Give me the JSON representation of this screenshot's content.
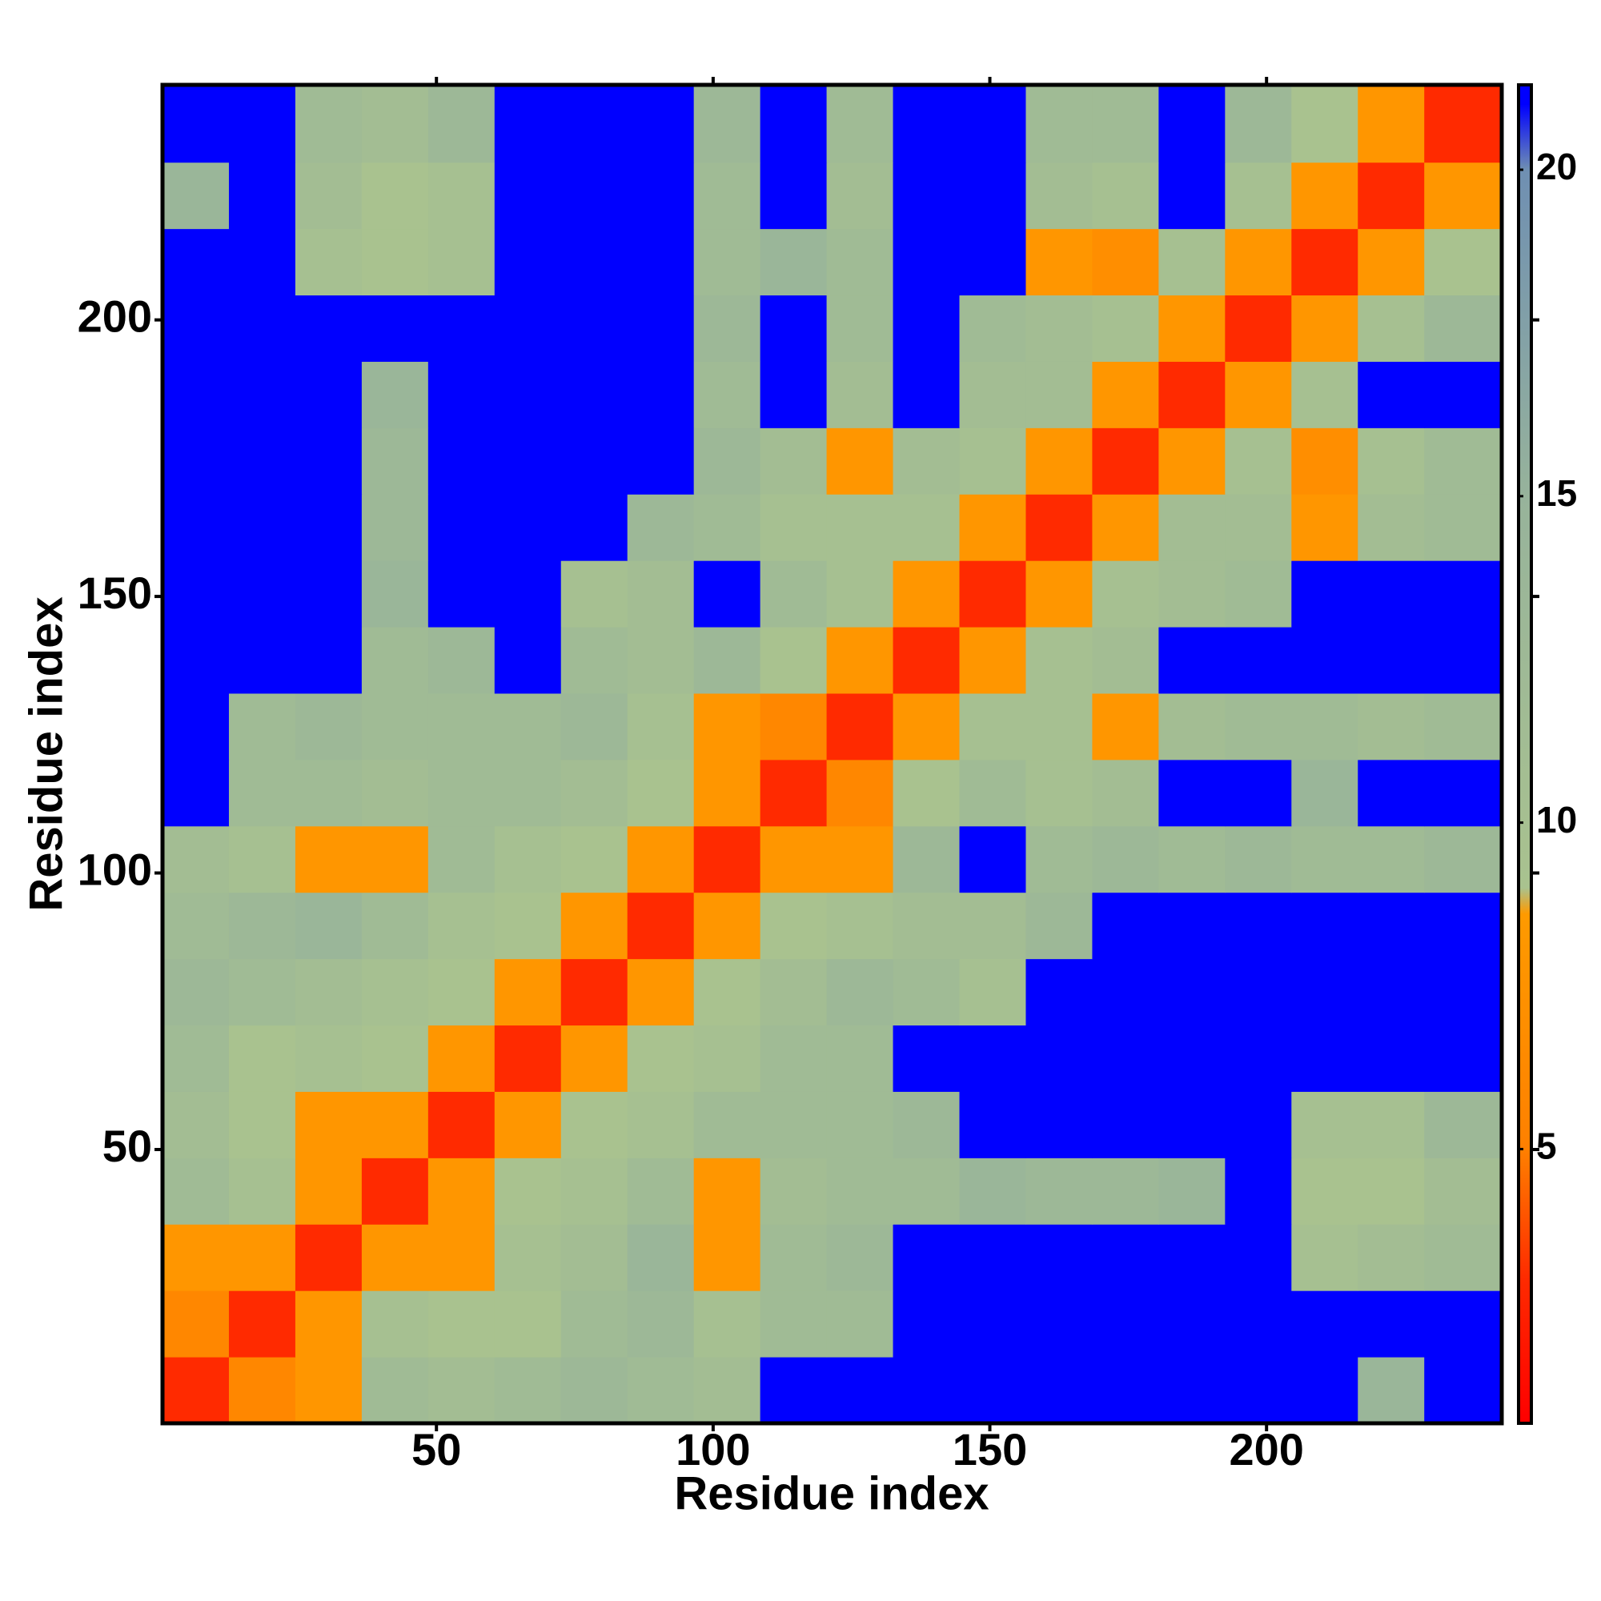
{
  "chart_data": {
    "type": "heatmap",
    "xlabel": "Residue index",
    "ylabel": "Residue index",
    "xlim": [
      0.5,
      242.5
    ],
    "ylim": [
      0.5,
      242.5
    ],
    "xticks": [
      50,
      100,
      150,
      200
    ],
    "yticks": [
      50,
      100,
      150,
      200
    ],
    "bins": [
      0.5,
      12.5,
      24.5,
      36.5,
      48.5,
      60.5,
      72.5,
      84.5,
      96.5,
      108.5,
      120.5,
      132.5,
      144.5,
      156.5,
      168.5,
      180.5,
      192.5,
      204.5,
      216.5,
      228.5,
      242.5
    ],
    "z": [
      [
        3,
        6,
        8,
        12,
        11,
        12,
        13,
        12,
        11,
        21,
        21,
        21,
        21,
        21,
        21,
        21,
        21,
        21,
        14,
        21
      ],
      [
        6,
        3,
        8,
        10,
        9,
        9,
        12,
        13,
        10,
        12,
        12,
        21,
        21,
        21,
        21,
        21,
        21,
        21,
        21,
        21
      ],
      [
        8,
        8,
        3,
        8,
        8,
        10,
        11,
        14,
        8,
        12,
        13,
        21,
        21,
        21,
        21,
        21,
        21,
        10,
        11,
        12
      ],
      [
        12,
        10,
        8,
        3,
        8,
        9,
        10,
        12,
        8,
        11,
        12,
        12,
        14,
        13,
        13,
        14,
        21,
        9,
        9,
        11
      ],
      [
        11,
        9,
        8,
        8,
        3,
        8,
        9,
        10,
        12,
        12,
        12,
        13,
        21,
        21,
        21,
        21,
        21,
        10,
        10,
        13
      ],
      [
        12,
        9,
        10,
        9,
        8,
        3,
        8,
        9,
        10,
        12,
        12,
        21,
        21,
        21,
        21,
        21,
        21,
        21,
        21,
        21
      ],
      [
        13,
        12,
        11,
        10,
        9,
        8,
        3,
        8,
        9,
        11,
        13,
        12,
        10,
        21,
        21,
        21,
        21,
        21,
        21,
        21
      ],
      [
        12,
        13,
        14,
        12,
        10,
        9,
        8,
        3,
        8,
        9,
        10,
        11,
        11,
        13,
        21,
        21,
        21,
        21,
        21,
        21
      ],
      [
        11,
        10,
        8,
        8,
        12,
        10,
        9,
        8,
        3,
        8,
        8,
        13,
        21,
        12,
        13,
        12,
        13,
        12,
        12,
        13
      ],
      [
        21,
        12,
        12,
        11,
        12,
        12,
        11,
        9,
        8,
        3,
        6,
        9,
        12,
        10,
        11,
        21,
        21,
        14,
        21,
        21
      ],
      [
        21,
        12,
        13,
        12,
        12,
        12,
        13,
        10,
        8,
        6,
        3,
        8,
        10,
        10,
        8,
        11,
        12,
        12,
        11,
        12
      ],
      [
        21,
        21,
        21,
        12,
        13,
        21,
        12,
        11,
        13,
        9,
        8,
        3,
        8,
        10,
        11,
        21,
        21,
        21,
        21,
        21
      ],
      [
        21,
        21,
        21,
        14,
        21,
        21,
        10,
        11,
        21,
        12,
        10,
        8,
        3,
        8,
        10,
        11,
        12,
        21,
        21,
        21
      ],
      [
        21,
        21,
        21,
        13,
        21,
        21,
        21,
        13,
        12,
        10,
        10,
        10,
        8,
        3,
        8,
        11,
        11,
        8,
        11,
        12
      ],
      [
        21,
        21,
        21,
        13,
        21,
        21,
        21,
        21,
        13,
        11,
        8,
        11,
        10,
        8,
        3,
        8,
        10,
        7,
        10,
        12
      ],
      [
        21,
        21,
        21,
        14,
        21,
        21,
        21,
        21,
        12,
        21,
        11,
        21,
        11,
        11,
        8,
        3,
        8,
        10,
        21,
        21
      ],
      [
        21,
        21,
        21,
        21,
        21,
        21,
        21,
        21,
        13,
        21,
        12,
        21,
        12,
        11,
        10,
        8,
        3,
        8,
        10,
        13
      ],
      [
        21,
        21,
        10,
        9,
        10,
        21,
        21,
        21,
        12,
        14,
        12,
        21,
        21,
        8,
        7,
        10,
        8,
        3,
        8,
        9
      ],
      [
        14,
        21,
        11,
        9,
        10,
        21,
        21,
        21,
        12,
        21,
        11,
        21,
        21,
        11,
        10,
        21,
        10,
        8,
        3,
        8
      ],
      [
        21,
        21,
        12,
        11,
        13,
        21,
        21,
        21,
        13,
        21,
        12,
        21,
        21,
        12,
        12,
        21,
        13,
        9,
        8,
        3
      ]
    ],
    "zlim": [
      0.8,
      21.3
    ],
    "zticks": [
      5,
      10,
      15,
      20
    ],
    "colorscale": [
      [
        0.8,
        "#ff0000"
      ],
      [
        3,
        "#ff2a00"
      ],
      [
        5,
        "#ff8000"
      ],
      [
        8.6,
        "#ff9a00"
      ],
      [
        9,
        "#a9c28f"
      ],
      [
        15,
        "#97b39b"
      ],
      [
        20,
        "#6f8fb2"
      ],
      [
        21,
        "#0000ff"
      ],
      [
        21.3,
        "#0000ff"
      ]
    ]
  }
}
